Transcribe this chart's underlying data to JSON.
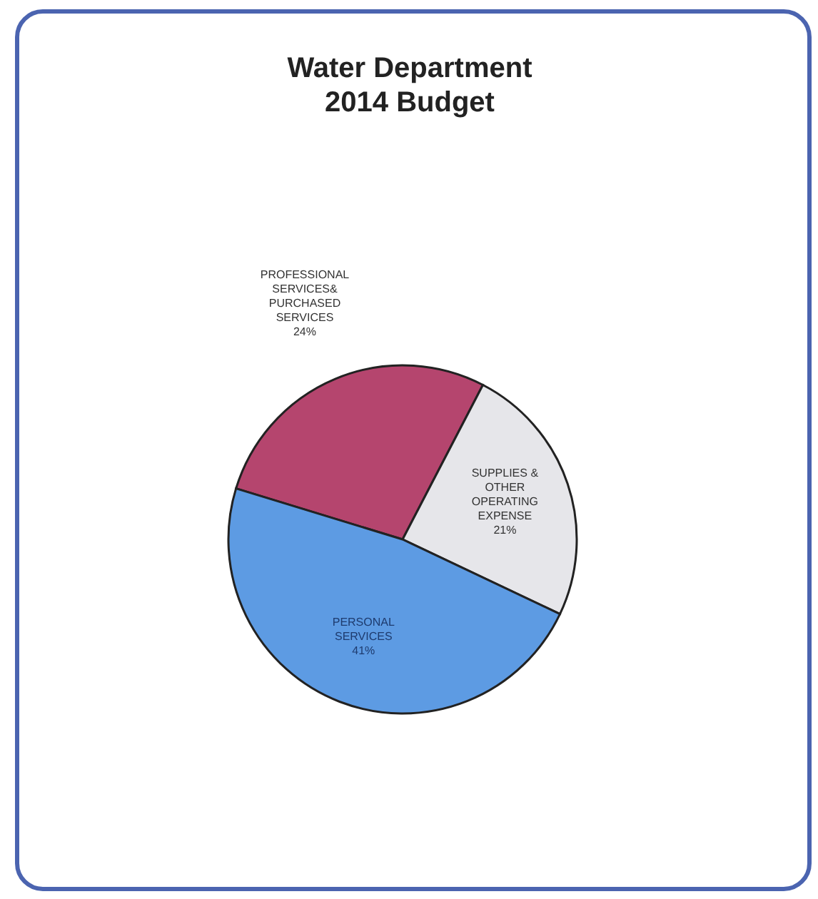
{
  "chart_data": {
    "type": "pie",
    "title": "Water Department\n2014 Budget",
    "categories": [
      "PROFESSIONAL\nSERVICES&\nPURCHASED\nSERVICES",
      "SUPPLIES &\nOTHER\nOPERATING\nEXPENSE",
      "PERSONAL\nSERVICES"
    ],
    "values": [
      24,
      21,
      41
    ],
    "colors": [
      "#b5456e",
      "#e6e6ea",
      "#5d9be3"
    ],
    "value_labels": [
      "24%",
      "21%",
      "41%"
    ]
  }
}
